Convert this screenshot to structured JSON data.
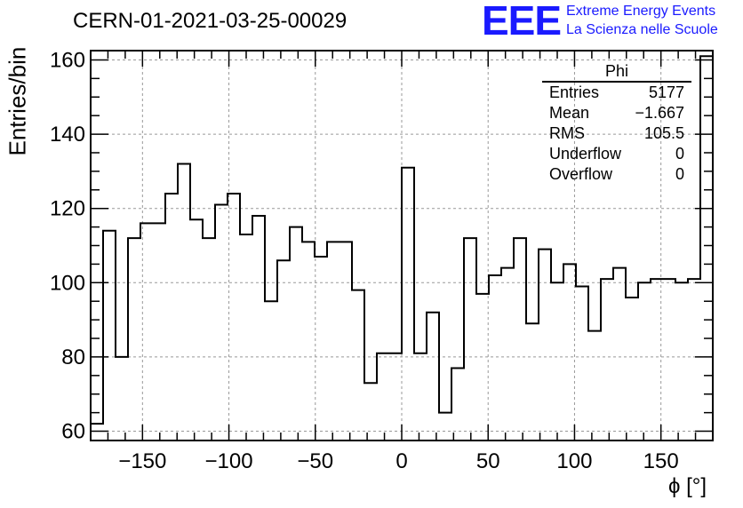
{
  "header": {
    "title": "CERN-01-2021-03-25-00029",
    "logo_mark": "EEE",
    "logo_line1": "Extreme Energy Events",
    "logo_line2": "La Scienza nelle Scuole"
  },
  "stats_box": {
    "title": "Phi",
    "rows": [
      {
        "label": "Entries",
        "value": "5177"
      },
      {
        "label": "Mean",
        "value": "−1.667"
      },
      {
        "label": "RMS",
        "value": "105.5"
      },
      {
        "label": "Underflow",
        "value": "0"
      },
      {
        "label": "Overflow",
        "value": "0"
      }
    ]
  },
  "colors": {
    "line": "#000000",
    "grid": "#999999",
    "logo": "#1a1aff"
  },
  "chart_data": {
    "type": "histogram",
    "title": "CERN-01-2021-03-25-00029",
    "xlabel": "ϕ [°]",
    "ylabel": "Entries/bin",
    "xlim": [
      -180,
      180
    ],
    "ylim": [
      57.5,
      162.5
    ],
    "bin_width": 7.2,
    "grid": true,
    "xticks": [
      -150,
      -100,
      -50,
      0,
      50,
      100,
      150
    ],
    "xtick_labels": [
      "−150",
      "−100",
      "−50",
      "0",
      "50",
      "100",
      "150"
    ],
    "yticks": [
      60,
      80,
      100,
      120,
      140,
      160
    ],
    "ytick_labels": [
      "60",
      "80",
      "100",
      "120",
      "140",
      "160"
    ],
    "bins": [
      -180,
      -172.8,
      -165.6,
      -158.4,
      -151.2,
      -144,
      -136.8,
      -129.6,
      -122.4,
      -115.2,
      -108,
      -100.8,
      -93.6,
      -86.4,
      -79.2,
      -72,
      -64.8,
      -57.6,
      -50.4,
      -43.2,
      -36,
      -28.8,
      -21.6,
      -14.4,
      -7.2,
      0,
      7.2,
      14.4,
      21.6,
      28.8,
      36,
      43.2,
      50.4,
      57.6,
      64.8,
      72,
      79.2,
      86.4,
      93.6,
      100.8,
      108,
      115.2,
      122.4,
      129.6,
      136.8,
      144,
      151.2,
      158.4,
      165.6,
      172.8
    ],
    "values": [
      62,
      114,
      80,
      112,
      116,
      116,
      124,
      132,
      117,
      112,
      121,
      124,
      113,
      118,
      95,
      106,
      115,
      111,
      107,
      111,
      111,
      98,
      73,
      81,
      81,
      131,
      81,
      92,
      65,
      77,
      112,
      97,
      102,
      104,
      112,
      89,
      109,
      100,
      105,
      99,
      87,
      101,
      104,
      96,
      100,
      101,
      101,
      100,
      101,
      161
    ]
  }
}
